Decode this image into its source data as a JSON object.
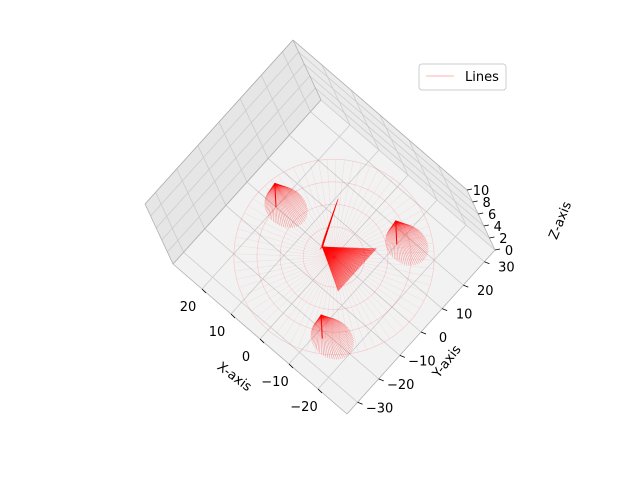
{
  "chart_data": {
    "type": "line",
    "projection": "3d",
    "title": "",
    "xlabel": "X-axis",
    "ylabel": "Y-axis",
    "zlabel": "Z-axis",
    "xticks": [
      -20,
      -10,
      0,
      10,
      20
    ],
    "yticks": [
      -30,
      -20,
      -10,
      0,
      10,
      20,
      30
    ],
    "zticks": [
      0,
      2,
      4,
      6,
      8,
      10
    ],
    "xlim": [
      -30,
      30
    ],
    "ylim": [
      -35,
      35
    ],
    "zlim": [
      0,
      10
    ],
    "grid": true,
    "legend": {
      "entries": [
        "Lines"
      ],
      "placement": "top-right"
    },
    "series": [
      {
        "name": "Lines",
        "color": "#ff0000"
      }
    ]
  }
}
